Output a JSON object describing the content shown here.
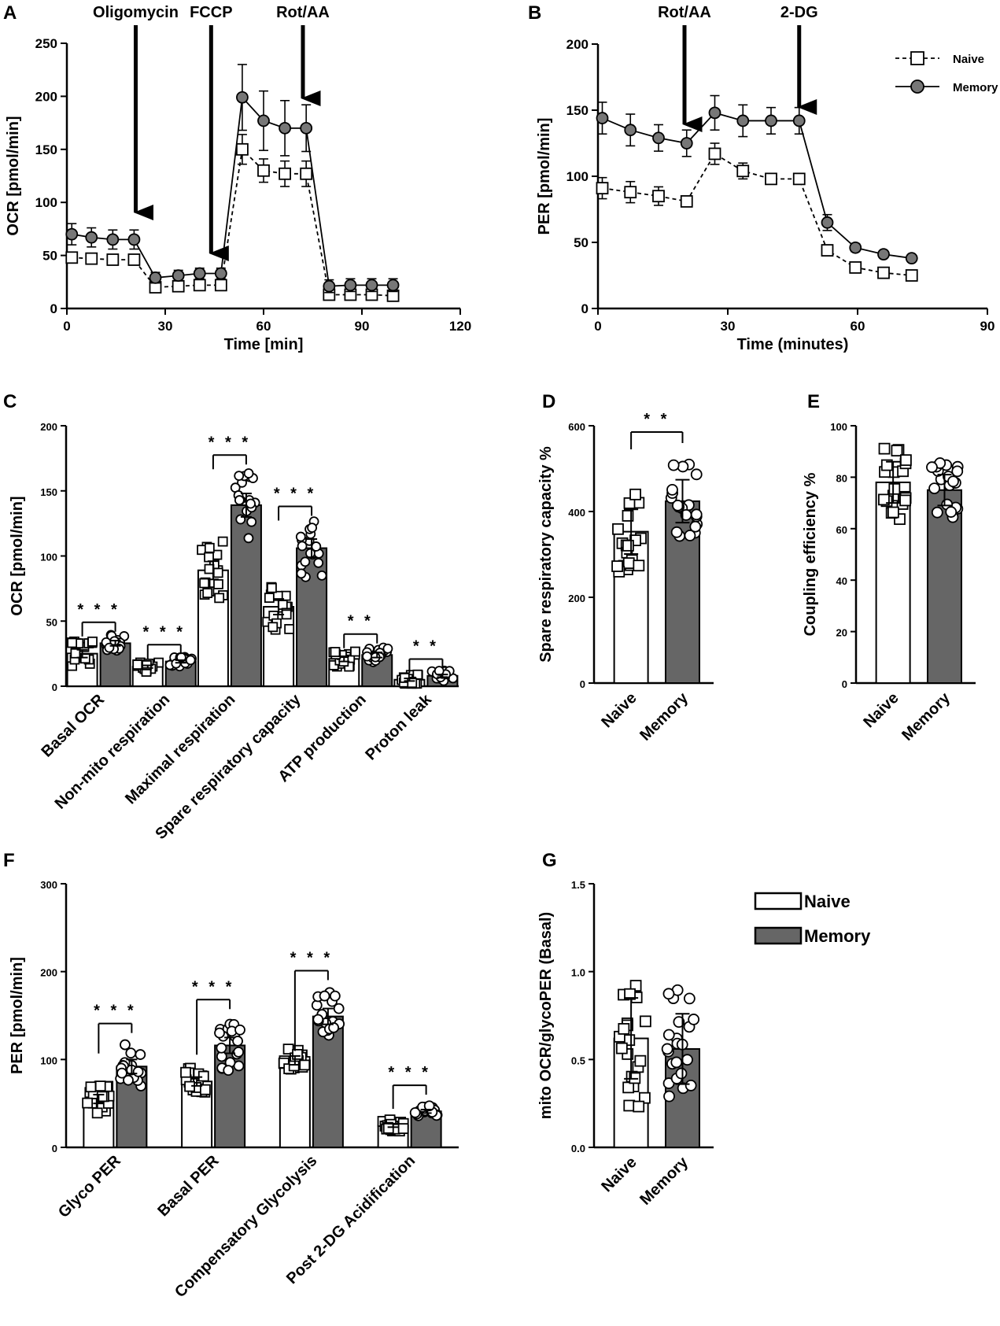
{
  "chart_data": [
    {
      "panel": "A",
      "type": "line",
      "xlabel": "Time [min]",
      "ylabel": "OCR [pmol/min]",
      "xlim": [
        0,
        120
      ],
      "ylim": [
        0,
        250
      ],
      "xticks": [
        "0",
        "30",
        "60",
        "90",
        "120"
      ],
      "yticks": [
        "0",
        "50",
        "100",
        "150",
        "200",
        "250"
      ],
      "injections": [
        {
          "label": "Oligomycin",
          "x": 21
        },
        {
          "label": "FCCP",
          "x": 44
        },
        {
          "label": "Rot/AA",
          "x": 72
        }
      ],
      "x": [
        1.5,
        7.5,
        14,
        20.5,
        27,
        34,
        40.5,
        47,
        53.5,
        60,
        66.5,
        73,
        80,
        86.5,
        93,
        99.5
      ],
      "series": [
        {
          "name": "Naive",
          "values": [
            48,
            47,
            46,
            46,
            20,
            21,
            22,
            22,
            150,
            130,
            127,
            127,
            13,
            13,
            13,
            12
          ],
          "err": [
            5,
            4,
            4,
            4,
            4,
            4,
            4,
            4,
            14,
            11,
            12,
            12,
            3,
            3,
            3,
            3
          ]
        },
        {
          "name": "Memory",
          "values": [
            70,
            67,
            65,
            65,
            29,
            31,
            33,
            33,
            199,
            177,
            170,
            170,
            21,
            22,
            22,
            22
          ],
          "err": [
            10,
            9,
            9,
            9,
            5,
            5,
            5,
            5,
            31,
            28,
            26,
            22,
            6,
            6,
            6,
            6
          ]
        }
      ]
    },
    {
      "panel": "B",
      "type": "line",
      "xlabel": "Time (minutes)",
      "ylabel": "PER [pmol/min]",
      "xlim": [
        0,
        90
      ],
      "ylim": [
        0,
        200
      ],
      "xticks": [
        "0",
        "30",
        "60",
        "90"
      ],
      "yticks": [
        "0",
        "50",
        "100",
        "150",
        "200"
      ],
      "injections": [
        {
          "label": "Rot/AA",
          "x": 20
        },
        {
          "label": "2-DG",
          "x": 46.5
        }
      ],
      "legend": [
        "Naive",
        "Memory"
      ],
      "x": [
        1,
        7.5,
        14,
        20.5,
        27,
        33.5,
        40,
        46.5,
        53,
        59.5,
        66,
        72.5
      ],
      "series": [
        {
          "name": "Naive",
          "values": [
            91,
            88,
            85,
            81,
            117,
            104,
            98,
            98,
            44,
            31,
            27,
            25
          ],
          "err": [
            8,
            8,
            7,
            4,
            8,
            6,
            3,
            3,
            4,
            3,
            3,
            3
          ]
        },
        {
          "name": "Memory",
          "values": [
            144,
            135,
            129,
            125,
            148,
            142,
            142,
            142,
            65,
            46,
            41,
            38
          ],
          "err": [
            12,
            12,
            10,
            10,
            13,
            12,
            10,
            10,
            6,
            3,
            2,
            2
          ]
        }
      ]
    },
    {
      "panel": "C",
      "type": "bar",
      "ylabel": "OCR [pmol/min]",
      "ylim": [
        0,
        200
      ],
      "yticks": [
        "0",
        "50",
        "100",
        "150",
        "200"
      ],
      "categories": [
        "Basal OCR",
        "Non-mito respiration",
        "Maximal respiration",
        "Spare respiratory capacity",
        "ATP production",
        "Proton leak"
      ],
      "significance": [
        "* * *",
        "* * *",
        "* * *",
        "* * *",
        "* *",
        "* *"
      ],
      "series": [
        {
          "name": "Naive",
          "values": [
            25,
            15,
            89,
            61,
            21,
            5
          ],
          "err": [
            3,
            1,
            7,
            6,
            2,
            1
          ]
        },
        {
          "name": "Memory",
          "values": [
            33,
            19,
            139,
            106,
            24,
            8
          ],
          "err": [
            2,
            1,
            9,
            7,
            2,
            1
          ]
        }
      ]
    },
    {
      "panel": "D",
      "type": "bar",
      "ylabel": "Spare respiratory capacity %",
      "ylim": [
        0,
        600
      ],
      "yticks": [
        "0",
        "200",
        "400",
        "600"
      ],
      "categories": [
        "Naive",
        "Memory"
      ],
      "significance": [
        "* *"
      ],
      "values": [
        353,
        424
      ],
      "err": [
        52,
        50
      ]
    },
    {
      "panel": "E",
      "type": "bar",
      "ylabel": "Coupling efficiency %",
      "ylim": [
        0,
        100
      ],
      "yticks": [
        "0",
        "20",
        "40",
        "60",
        "80",
        "100"
      ],
      "categories": [
        "Naive",
        "Memory"
      ],
      "values": [
        78,
        75
      ],
      "err": [
        8,
        6
      ]
    },
    {
      "panel": "F",
      "type": "bar",
      "ylabel": "PER [pmol/min]",
      "ylim": [
        0,
        300
      ],
      "yticks": [
        "0",
        "100",
        "200",
        "300"
      ],
      "categories": [
        "Glyco PER",
        "Basal PER",
        "Compensatory Glycolysis",
        "Post 2-DG Acidification"
      ],
      "significance": [
        "* * *",
        "* * *",
        "* * *",
        "* * *"
      ],
      "legend": [
        "Naive",
        "Memory"
      ],
      "series": [
        {
          "name": "Naive",
          "values": [
            55,
            75,
            99,
            25
          ],
          "err": [
            5,
            5,
            5,
            2
          ]
        },
        {
          "name": "Memory",
          "values": [
            92,
            116,
            149,
            41
          ],
          "err": [
            8,
            9,
            9,
            2
          ]
        }
      ]
    },
    {
      "panel": "G",
      "type": "bar",
      "ylabel": "mito OCR/glycoPER (Basal)",
      "ylim": [
        0,
        1.5
      ],
      "yticks": [
        "0.0",
        "0.5",
        "1.0",
        "1.5"
      ],
      "categories": [
        "Naive",
        "Memory"
      ],
      "values": [
        0.62,
        0.56
      ],
      "err": [
        0.23,
        0.2
      ]
    }
  ]
}
